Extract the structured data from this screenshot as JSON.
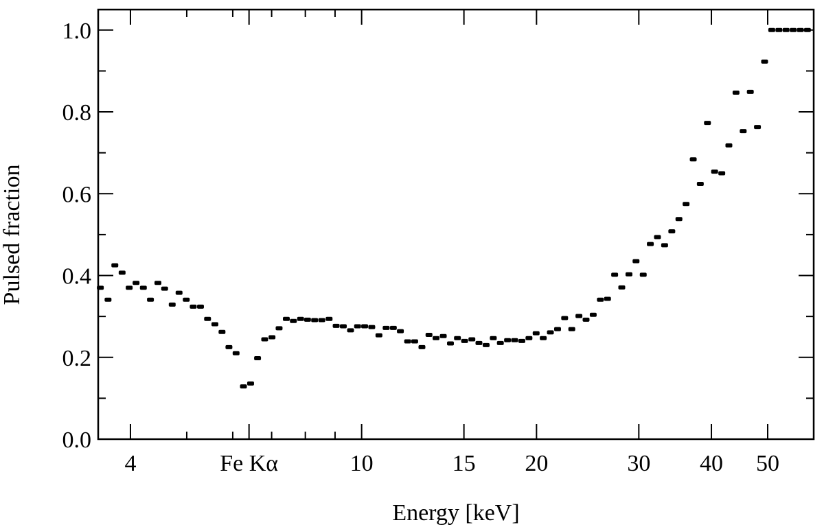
{
  "chart_data": {
    "type": "scatter",
    "xlabel": "Energy [keV]",
    "ylabel": "Pulsed fraction",
    "xscale": "log",
    "color": "#000000",
    "xlim": [
      3.52,
      60
    ],
    "ylim": [
      0,
      1.05
    ],
    "xticks": [
      4,
      {
        "value": 6.4,
        "label": "Fe Kα"
      },
      10,
      15,
      20,
      30,
      40,
      50
    ],
    "xminor_ticks": [
      5,
      6,
      7,
      8,
      9
    ],
    "yticks": [
      {
        "value": 0,
        "label": "0.0"
      },
      0.2,
      0.4,
      0.6,
      0.8,
      {
        "value": 1,
        "label": "1.0"
      }
    ],
    "yminor_ticks": [
      0.1,
      0.3,
      0.5,
      0.7,
      0.9
    ],
    "x": [
      3.55,
      3.66,
      3.76,
      3.87,
      3.98,
      4.09,
      4.21,
      4.33,
      4.46,
      4.58,
      4.72,
      4.85,
      4.99,
      5.13,
      5.28,
      5.43,
      5.59,
      5.75,
      5.91,
      6.08,
      6.26,
      6.44,
      6.62,
      6.81,
      7.01,
      7.21,
      7.42,
      7.63,
      7.85,
      8.07,
      8.3,
      8.54,
      8.79,
      9.04,
      9.3,
      9.57,
      9.84,
      10.12,
      10.41,
      10.71,
      11.02,
      11.34,
      11.66,
      12.0,
      12.34,
      12.7,
      13.06,
      13.43,
      13.82,
      14.22,
      14.62,
      15.04,
      15.48,
      15.92,
      16.38,
      16.85,
      17.33,
      17.83,
      18.34,
      18.87,
      19.41,
      19.97,
      20.54,
      21.13,
      21.74,
      22.36,
      23.0,
      23.66,
      24.34,
      25.04,
      25.76,
      26.5,
      27.26,
      28.04,
      28.85,
      29.67,
      30.53,
      31.4,
      32.3,
      33.23,
      34.19,
      35.17,
      36.18,
      37.22,
      38.28,
      39.38,
      40.51,
      41.68,
      42.87,
      44.1,
      45.37,
      46.67,
      48.01,
      49.39,
      50.81,
      52.27,
      53.77,
      55.31,
      56.9,
      58.53
    ],
    "values": [
      0.37,
      0.341,
      0.425,
      0.407,
      0.37,
      0.382,
      0.37,
      0.341,
      0.382,
      0.368,
      0.329,
      0.358,
      0.341,
      0.324,
      0.324,
      0.294,
      0.281,
      0.262,
      0.225,
      0.21,
      0.129,
      0.136,
      0.198,
      0.244,
      0.249,
      0.271,
      0.294,
      0.289,
      0.294,
      0.292,
      0.291,
      0.291,
      0.294,
      0.277,
      0.276,
      0.266,
      0.276,
      0.276,
      0.274,
      0.254,
      0.272,
      0.272,
      0.264,
      0.239,
      0.239,
      0.225,
      0.255,
      0.247,
      0.252,
      0.234,
      0.247,
      0.24,
      0.244,
      0.235,
      0.23,
      0.247,
      0.235,
      0.242,
      0.242,
      0.24,
      0.247,
      0.259,
      0.247,
      0.261,
      0.269,
      0.296,
      0.269,
      0.301,
      0.292,
      0.304,
      0.341,
      0.343,
      0.402,
      0.371,
      0.403,
      0.435,
      0.402,
      0.477,
      0.494,
      0.474,
      0.508,
      0.538,
      0.575,
      0.684,
      0.624,
      0.773,
      0.654,
      0.65,
      0.718,
      0.847,
      0.753,
      0.849,
      0.763,
      0.923,
      1.0,
      1.0,
      1.0,
      1.0,
      1.0,
      1.0
    ]
  }
}
